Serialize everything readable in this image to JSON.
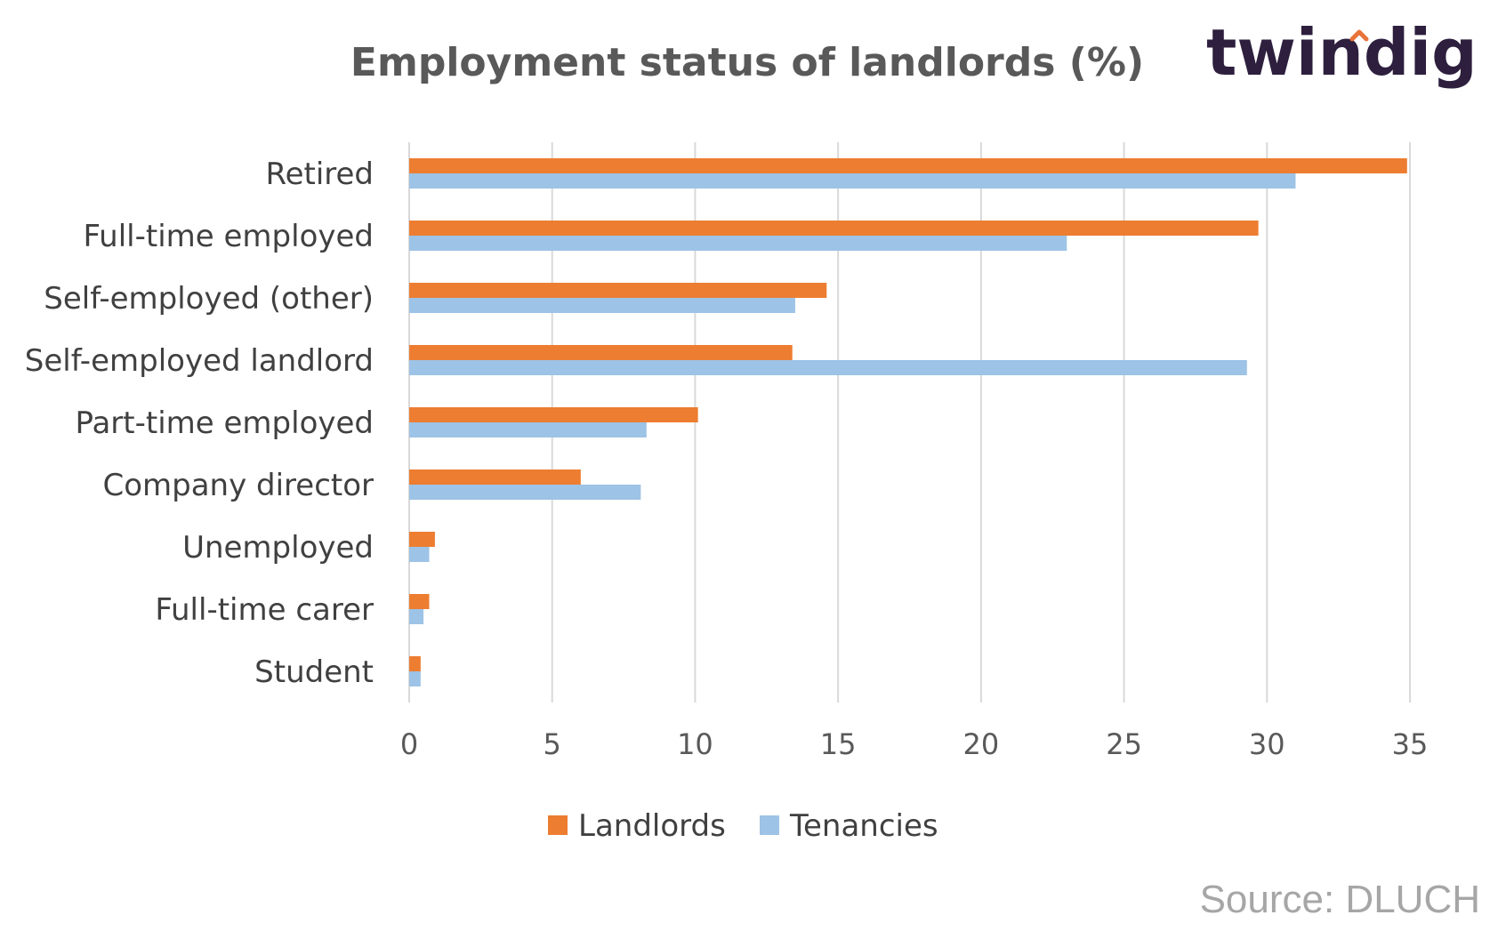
{
  "logo": {
    "text": "twindig",
    "accent_color": "#e8743b",
    "color": "#2d1f3d"
  },
  "source": "Source: DLUCH",
  "chart_data": {
    "type": "bar",
    "orientation": "horizontal",
    "title": "Employment status of landlords (%)",
    "categories": [
      "Retired",
      "Full-time employed",
      "Self-employed (other)",
      "Self-employed landlord",
      "Part-time employed",
      "Company director",
      "Unemployed",
      "Full-time carer",
      "Student"
    ],
    "series": [
      {
        "name": "Landlords",
        "color": "#ed7d31",
        "values": [
          34.9,
          29.7,
          14.6,
          13.4,
          10.1,
          6.0,
          0.9,
          0.7,
          0.4
        ]
      },
      {
        "name": "Tenancies",
        "color": "#9dc3e6",
        "values": [
          31.0,
          23.0,
          13.5,
          29.3,
          8.3,
          8.1,
          0.7,
          0.5,
          0.4
        ]
      }
    ],
    "xlim": [
      0,
      35
    ],
    "xticks": [
      "0",
      "5",
      "10",
      "15",
      "20",
      "25",
      "30",
      "35"
    ],
    "xlabel": "",
    "ylabel": "",
    "grid": "vertical",
    "legend": "bottom"
  }
}
